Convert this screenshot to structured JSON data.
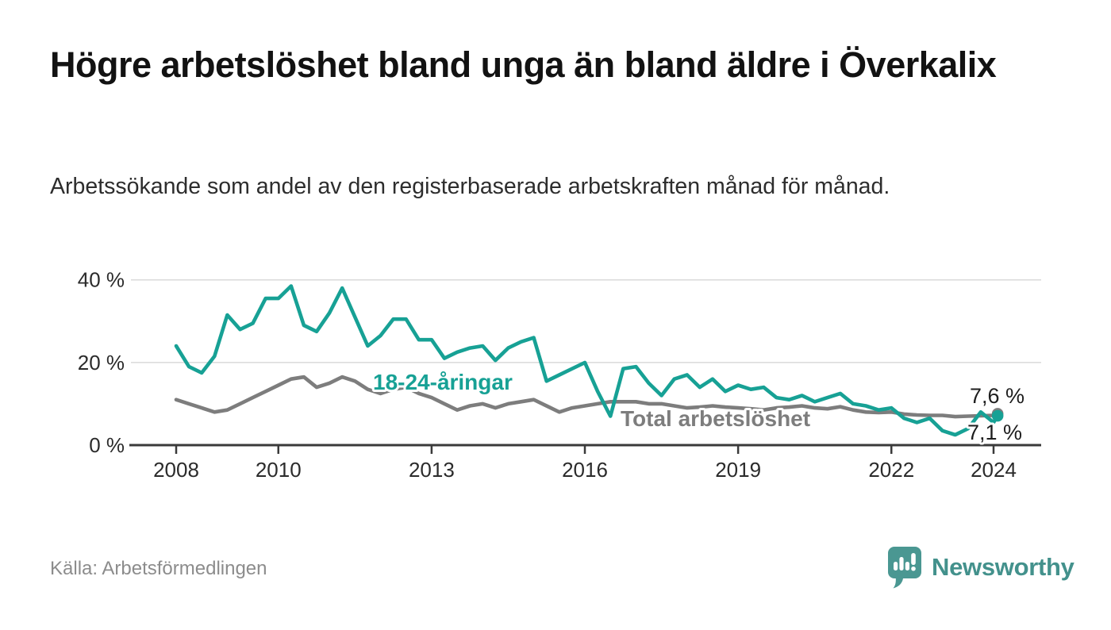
{
  "header": {
    "title": "Högre arbetslöshet bland unga än bland äldre i Överkalix",
    "subtitle": "Arbetssökande som andel av den registerbaserade arbetskraften månad för månad."
  },
  "footer": {
    "source": "Källa: Arbetsförmedlingen",
    "logo_text": "Newsworthy"
  },
  "colors": {
    "accent_teal": "#17a195",
    "series_gray": "#7d7d7d",
    "gridline": "#dadada",
    "axis": "#3a3a3a",
    "tick_text": "#2b2b2b",
    "end_label_text": "#1d1d1d",
    "logo_teal": "#4a9792",
    "logo_text_teal": "#43918c"
  },
  "chart_data": {
    "type": "line",
    "title": "Högre arbetslöshet bland unga än bland äldre i Överkalix",
    "subtitle": "Arbetssökande som andel av den registerbaserade arbetskraften månad för månad.",
    "x_unit": "decimal_year",
    "y_unit": "%",
    "grid": "horizontal-only",
    "legend_position": "inline-labels-on-lines",
    "x_axis": {
      "ticks": [
        2008,
        2010,
        2013,
        2016,
        2019,
        2022,
        2024
      ],
      "labels": [
        "2008",
        "2010",
        "2013",
        "2016",
        "2019",
        "2022",
        "2024"
      ],
      "range": [
        2007.1,
        2024.9
      ]
    },
    "y_axis": {
      "ticks": [
        0,
        20,
        40
      ],
      "labels": [
        "0 %",
        "20 %",
        "40 %"
      ],
      "range": [
        0,
        42
      ]
    },
    "x": [
      2008.0,
      2008.25,
      2008.5,
      2008.75,
      2009.0,
      2009.25,
      2009.5,
      2009.75,
      2010.0,
      2010.25,
      2010.5,
      2010.75,
      2011.0,
      2011.25,
      2011.5,
      2011.75,
      2012.0,
      2012.25,
      2012.5,
      2012.75,
      2013.0,
      2013.25,
      2013.5,
      2013.75,
      2014.0,
      2014.25,
      2014.5,
      2014.75,
      2015.0,
      2015.25,
      2015.5,
      2015.75,
      2016.0,
      2016.25,
      2016.5,
      2016.75,
      2017.0,
      2017.25,
      2017.5,
      2017.75,
      2018.0,
      2018.25,
      2018.5,
      2018.75,
      2019.0,
      2019.25,
      2019.5,
      2019.75,
      2020.0,
      2020.25,
      2020.5,
      2020.75,
      2021.0,
      2021.25,
      2021.5,
      2021.75,
      2022.0,
      2022.25,
      2022.5,
      2022.75,
      2023.0,
      2023.25,
      2023.5,
      2023.75,
      2024.0,
      2024.08
    ],
    "series": [
      {
        "name": "18-24-åringar",
        "color": "#17a195",
        "last_value": 7.1,
        "last_value_label": "7,1 %",
        "values": [
          24,
          19,
          17.5,
          21.5,
          31.5,
          28,
          29.5,
          35.5,
          35.5,
          38.5,
          29,
          27.5,
          32,
          38,
          31,
          24,
          26.5,
          30.5,
          30.5,
          25.5,
          25.5,
          21,
          22.5,
          23.5,
          24,
          20.5,
          23.5,
          25,
          26,
          15.5,
          17,
          18.5,
          20,
          13,
          7,
          18.5,
          19,
          15,
          12,
          16,
          17,
          14,
          16,
          13,
          14.5,
          13.5,
          14,
          11.5,
          11,
          12,
          10.5,
          11.5,
          12.5,
          10,
          9.5,
          8.5,
          9,
          6.5,
          5.5,
          6.5,
          3.5,
          2.5,
          4,
          8,
          5.5,
          7.1
        ]
      },
      {
        "name": "Total arbetslöshet",
        "color": "#7d7d7d",
        "last_value": 7.6,
        "last_value_label": "7,6 %",
        "values": [
          11,
          10,
          9,
          8,
          8.5,
          10,
          11.5,
          13,
          14.5,
          16,
          16.5,
          14,
          15,
          16.5,
          15.5,
          13.5,
          12.5,
          13.5,
          14,
          12.5,
          11.5,
          10,
          8.5,
          9.5,
          10,
          9,
          10,
          10.5,
          11,
          9.5,
          8,
          9,
          9.5,
          10,
          10.5,
          10.5,
          10.5,
          10,
          10,
          9.5,
          9,
          9.2,
          9.5,
          9.2,
          9,
          8.8,
          8.5,
          9,
          9.2,
          9.5,
          9,
          8.8,
          9.3,
          8.5,
          8,
          7.9,
          8,
          7.5,
          7.3,
          7.2,
          7.2,
          6.9,
          7,
          7.1,
          7.2,
          7.6
        ]
      }
    ]
  }
}
